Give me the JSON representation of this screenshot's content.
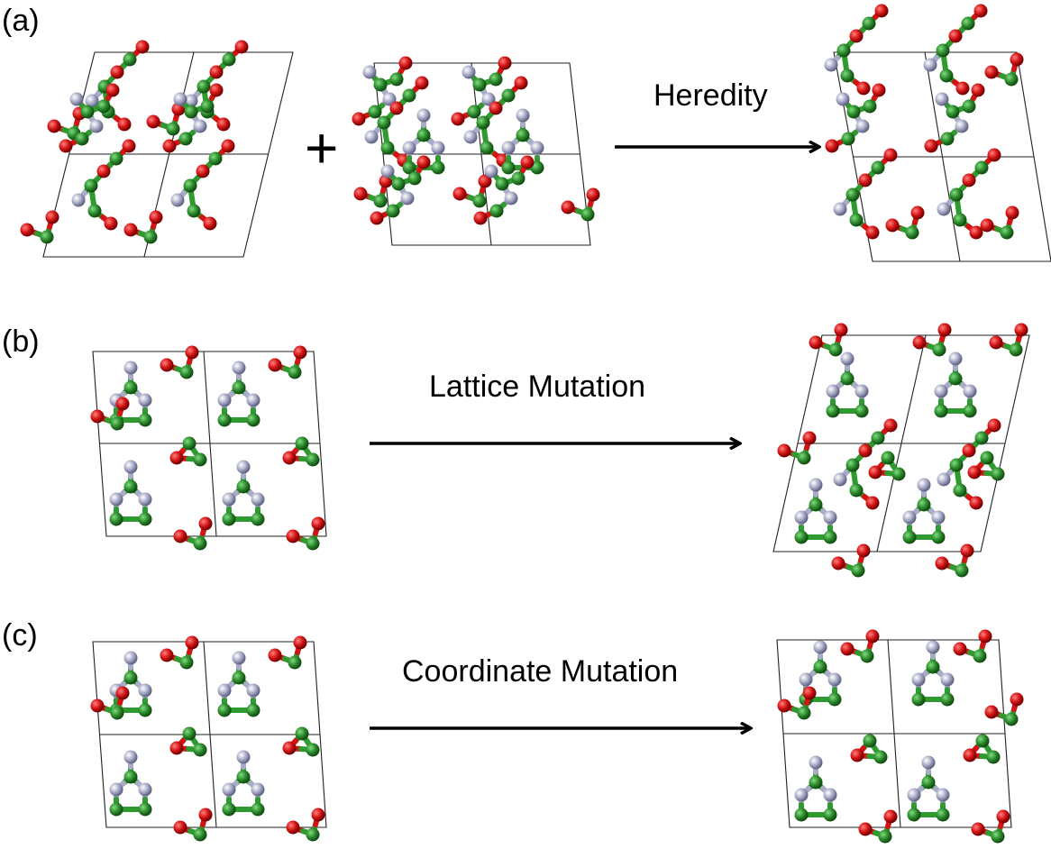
{
  "colors": {
    "green_atom": "#2e8b2e",
    "red_atom": "#d41414",
    "grey_atom": "#a9abc8",
    "bond_green": "#2f9a2f",
    "cell_line": "#222222"
  },
  "panels": [
    {
      "id": "a",
      "label": "(a)",
      "operator": "+",
      "operation": "Heredity"
    },
    {
      "id": "b",
      "label": "(b)",
      "operation": "Lattice Mutation"
    },
    {
      "id": "c",
      "label": "(c)",
      "operation": "Coordinate Mutation"
    }
  ]
}
